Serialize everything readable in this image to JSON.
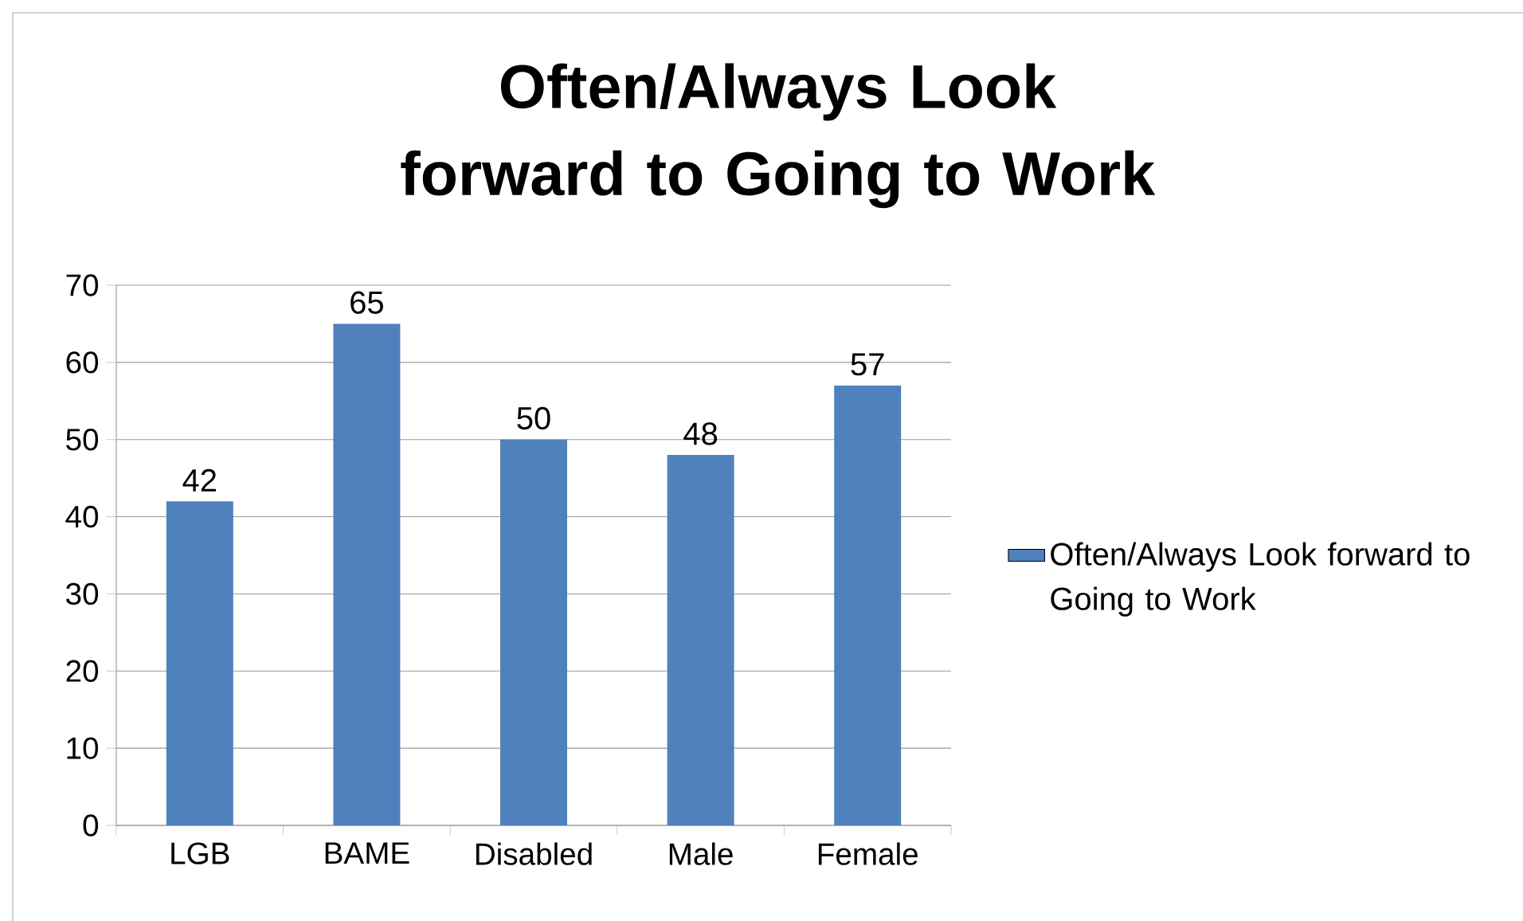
{
  "chart_data": {
    "type": "bar",
    "title": "Often/Always Look forward to Going to Work",
    "categories": [
      "LGB",
      "BAME",
      "Disabled",
      "Male",
      "Female"
    ],
    "series": [
      {
        "name": "Often/Always Look forward to Going to Work",
        "color": "#4f81bd",
        "values": [
          42,
          65,
          50,
          48,
          57
        ]
      }
    ],
    "ylim": [
      0,
      70
    ],
    "yticks": [
      0,
      10,
      20,
      30,
      40,
      50,
      60,
      70
    ],
    "grid": "y",
    "legend": "right",
    "data_labels": true
  }
}
